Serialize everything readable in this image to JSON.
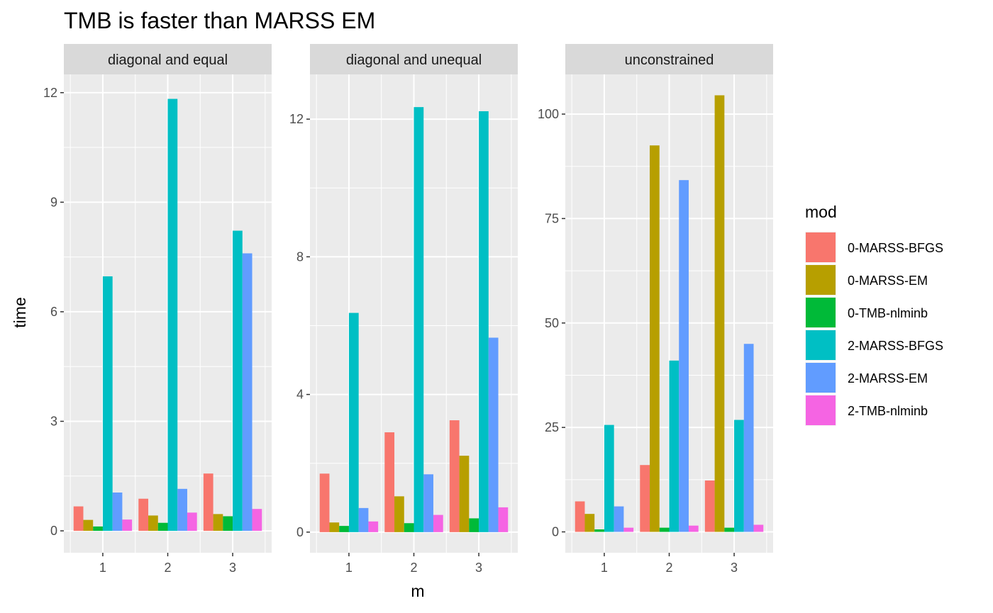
{
  "chart_data": {
    "type": "bar",
    "title": "TMB is faster than MARSS EM",
    "xlabel": "m",
    "ylabel": "time",
    "categories": [
      "1",
      "2",
      "3"
    ],
    "series_names": [
      "0-MARSS-BFGS",
      "0-MARSS-EM",
      "0-TMB-nlminb",
      "2-MARSS-BFGS",
      "2-MARSS-EM",
      "2-TMB-nlminb"
    ],
    "colors": [
      "#F8766D",
      "#B79F00",
      "#00BA38",
      "#00BFC4",
      "#619CFF",
      "#F564E3"
    ],
    "grid": true,
    "legend": {
      "title": "mod",
      "position": "right"
    },
    "panels": [
      {
        "strip": "diagonal and equal",
        "ylim": [
          -0.6,
          12.5
        ],
        "yticks": [
          0,
          3,
          6,
          9,
          12
        ],
        "values": {
          "0-MARSS-BFGS": [
            0.67,
            0.88,
            1.57
          ],
          "0-MARSS-EM": [
            0.3,
            0.42,
            0.46
          ],
          "0-TMB-nlminb": [
            0.12,
            0.22,
            0.4
          ],
          "2-MARSS-BFGS": [
            6.97,
            11.83,
            8.22
          ],
          "2-MARSS-EM": [
            1.05,
            1.15,
            7.6
          ],
          "2-TMB-nlminb": [
            0.31,
            0.5,
            0.6
          ]
        }
      },
      {
        "strip": "diagonal and unequal",
        "ylim": [
          -0.6,
          13.3
        ],
        "yticks": [
          0,
          4,
          8,
          12
        ],
        "values": {
          "0-MARSS-BFGS": [
            1.7,
            2.9,
            3.25
          ],
          "0-MARSS-EM": [
            0.28,
            1.04,
            2.22
          ],
          "0-TMB-nlminb": [
            0.18,
            0.26,
            0.4
          ],
          "2-MARSS-BFGS": [
            6.37,
            12.35,
            12.23
          ],
          "2-MARSS-EM": [
            0.7,
            1.68,
            5.65
          ],
          "2-TMB-nlminb": [
            0.31,
            0.5,
            0.72
          ]
        }
      },
      {
        "strip": "unconstrained",
        "ylim": [
          -5,
          109.5
        ],
        "yticks": [
          0,
          25,
          50,
          75,
          100
        ],
        "values": {
          "0-MARSS-BFGS": [
            7.3,
            16.0,
            12.3
          ],
          "0-MARSS-EM": [
            4.3,
            92.5,
            104.5
          ],
          "0-TMB-nlminb": [
            0.6,
            1.0,
            1.0
          ],
          "2-MARSS-BFGS": [
            25.6,
            41.0,
            26.8
          ],
          "2-MARSS-EM": [
            6.1,
            84.2,
            45.0
          ],
          "2-TMB-nlminb": [
            1.0,
            1.5,
            1.7
          ]
        }
      }
    ]
  }
}
